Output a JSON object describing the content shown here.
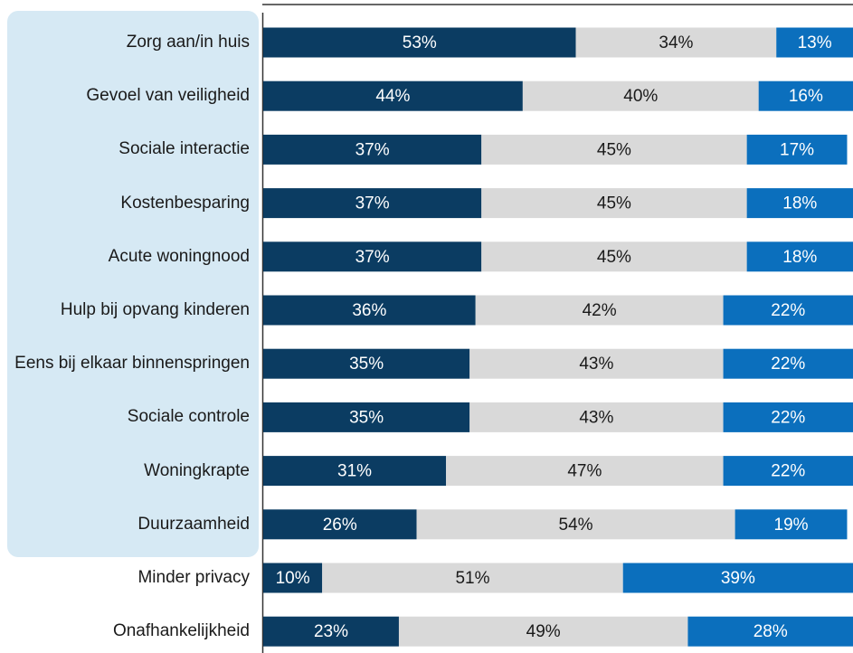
{
  "chart_data": {
    "type": "stacked-bar-horizontal",
    "categories": [
      "Zorg aan/in huis",
      "Gevoel van veiligheid",
      "Sociale interactie",
      "Kostenbesparing",
      "Acute woningnood",
      "Hulp bij opvang kinderen",
      "Eens bij elkaar binnenspringen",
      "Sociale controle",
      "Woningkrapte",
      "Duurzaamheid",
      "Minder privacy",
      "Onafhankelijkheid"
    ],
    "xlim": [
      0,
      100
    ],
    "series": [
      {
        "color": "#0b3c62",
        "label_color": "#ffffff",
        "values": [
          53,
          44,
          37,
          37,
          37,
          36,
          35,
          35,
          31,
          26,
          10,
          23
        ],
        "value_labels": [
          "53%",
          "44%",
          "37%",
          "37%",
          "37%",
          "36%",
          "35%",
          "35%",
          "31%",
          "26%",
          "10%",
          "23%"
        ]
      },
      {
        "color": "#d9d9d9",
        "label_color": "#1a1a1a",
        "values": [
          34,
          40,
          45,
          45,
          45,
          42,
          43,
          43,
          47,
          54,
          51,
          49
        ],
        "value_labels": [
          "34%",
          "40%",
          "45%",
          "45%",
          "45%",
          "42%",
          "43%",
          "43%",
          "47%",
          "54%",
          "51%",
          "49%"
        ]
      },
      {
        "color": "#0b6fbd",
        "label_color": "#ffffff",
        "values": [
          13,
          16,
          17,
          18,
          18,
          22,
          22,
          22,
          22,
          19,
          39,
          28
        ],
        "value_labels": [
          "13%",
          "16%",
          "17%",
          "18%",
          "18%",
          "22%",
          "22%",
          "22%",
          "22%",
          "19%",
          "39%",
          "28%"
        ]
      }
    ]
  }
}
